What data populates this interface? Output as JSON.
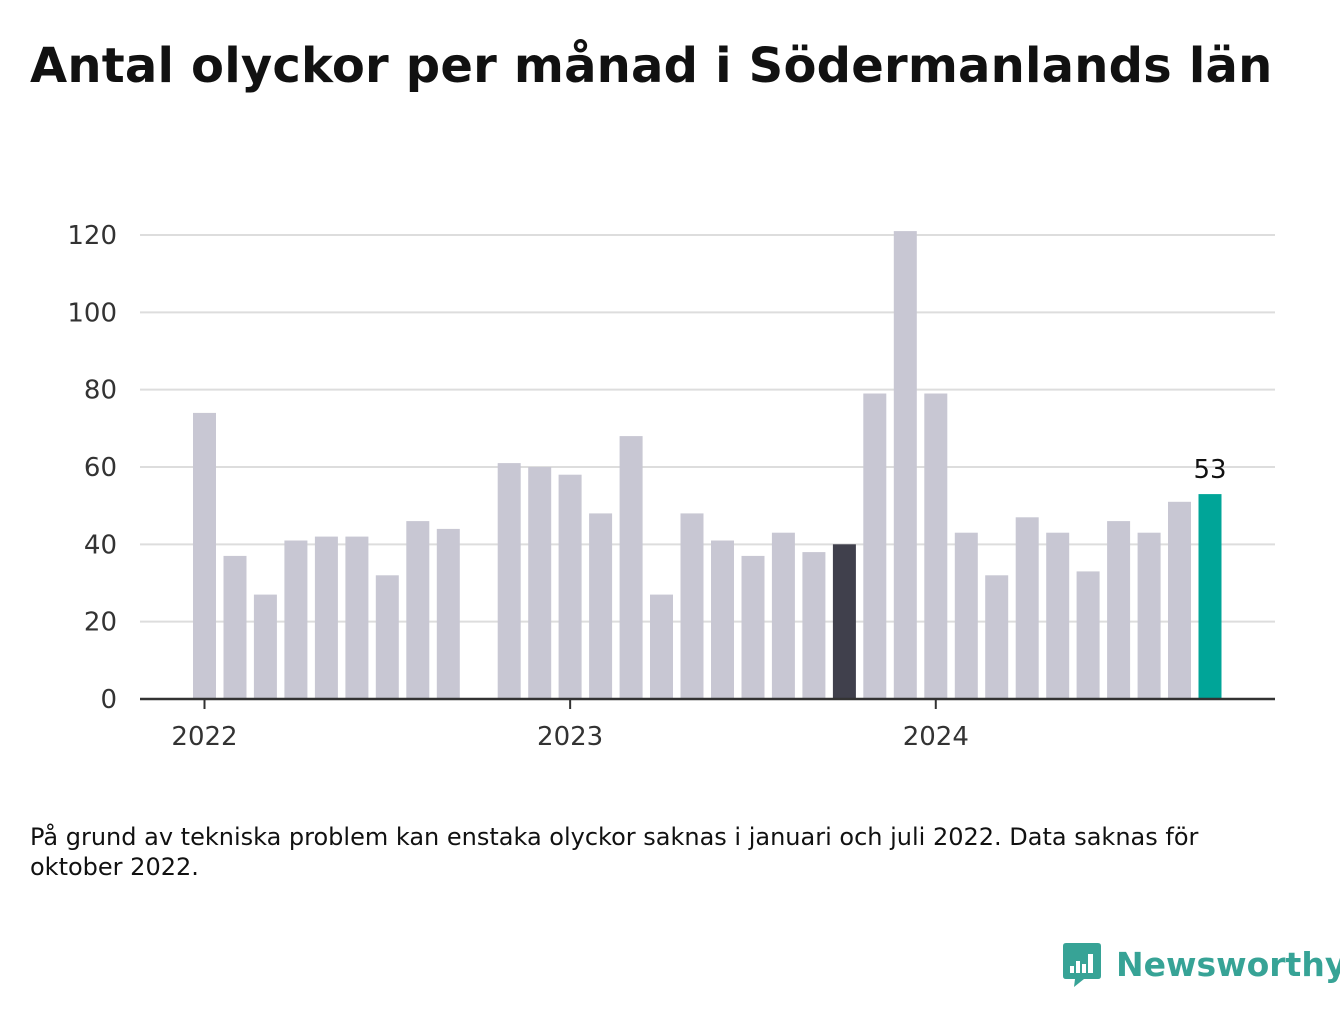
{
  "title": "Antal olyckor per månad i Södermanlands län",
  "footnote": "På grund av tekniska problem kan enstaka olyckor saknas i januari och juli 2022. Data saknas för oktober 2022.",
  "brand": {
    "name": "Newsworthy",
    "icon": "bar-chart-speech-bubble-icon"
  },
  "colors": {
    "bar": "#c8c7d3",
    "reference_bar": "#40404c",
    "highlight_bar": "#00a598",
    "grid": "#dddddd",
    "axis": "#333333",
    "brand": "#37a396"
  },
  "chart_data": {
    "type": "bar",
    "title": "Antal olyckor per månad i Södermanlands län",
    "xlabel": "",
    "ylabel": "",
    "ylim": [
      0,
      120
    ],
    "yticks": [
      0,
      20,
      40,
      60,
      80,
      100,
      120
    ],
    "grid": true,
    "x_tick_labels": [
      "2022",
      "2023",
      "2024"
    ],
    "categories": [
      "2022-01",
      "2022-02",
      "2022-03",
      "2022-04",
      "2022-05",
      "2022-06",
      "2022-07",
      "2022-08",
      "2022-09",
      "2022-10",
      "2022-11",
      "2022-12",
      "2023-01",
      "2023-02",
      "2023-03",
      "2023-04",
      "2023-05",
      "2023-06",
      "2023-07",
      "2023-08",
      "2023-09",
      "2023-10",
      "2023-11",
      "2023-12",
      "2024-01",
      "2024-02",
      "2024-03",
      "2024-04",
      "2024-05",
      "2024-06",
      "2024-07",
      "2024-08",
      "2024-09",
      "2024-10"
    ],
    "values": [
      74,
      37,
      27,
      41,
      42,
      42,
      32,
      46,
      44,
      null,
      61,
      60,
      58,
      48,
      68,
      27,
      48,
      41,
      37,
      43,
      38,
      40,
      79,
      121,
      79,
      43,
      32,
      47,
      43,
      33,
      46,
      43,
      51,
      53
    ],
    "reference_index": 21,
    "highlight_index": 33,
    "annotations": [
      {
        "index": 33,
        "text": "53"
      }
    ]
  }
}
